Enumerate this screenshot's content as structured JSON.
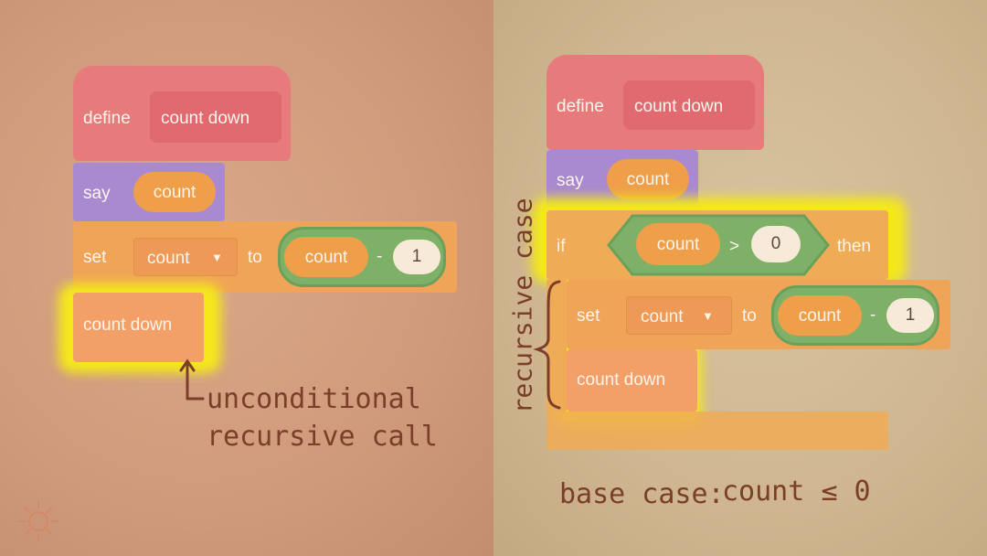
{
  "left": {
    "define_keyword": "define",
    "define_name": "count down",
    "say_keyword": "say",
    "say_value": "count",
    "set_keyword": "set",
    "set_variable": "count",
    "set_to": "to",
    "expr_var": "count",
    "expr_op": "-",
    "expr_num": "1",
    "call_label": "count down",
    "annotation_line1": "unconditional",
    "annotation_line2": "recursive call"
  },
  "right": {
    "define_keyword": "define",
    "define_name": "count down",
    "say_keyword": "say",
    "say_value": "count",
    "if_keyword": "if",
    "cond_var": "count",
    "cond_op": ">",
    "cond_num": "0",
    "then_keyword": "then",
    "set_keyword": "set",
    "set_variable": "count",
    "set_to": "to",
    "expr_var": "count",
    "expr_op": "-",
    "expr_num": "1",
    "call_label": "count down",
    "recursive_label": "recursive case",
    "base_case_label": "base case:",
    "base_case_expr": "count ≤ 0"
  },
  "colors": {
    "define_block": "#e77b7b",
    "say_block": "#a98ad0",
    "control_block": "#efab55",
    "operator_block": "#7fb068",
    "highlight": "#f4e81a",
    "ink": "#7a3e2a"
  },
  "icons": [
    "dropdown-arrow-icon",
    "sun-doodle-icon"
  ]
}
